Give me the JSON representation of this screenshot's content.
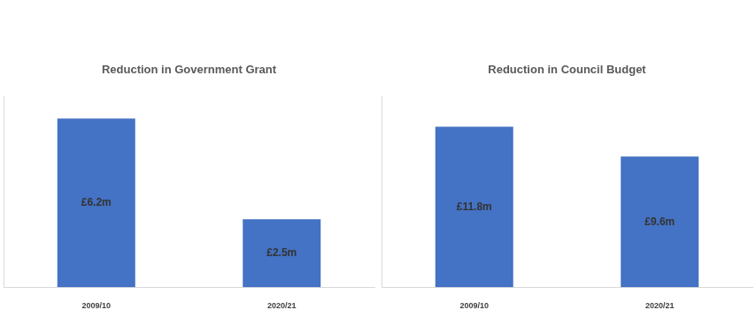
{
  "chart_data": [
    {
      "type": "bar",
      "title": "Reduction in Government Grant",
      "categories": [
        "2009/10",
        "2020/21"
      ],
      "values": [
        6.2,
        2.5
      ],
      "value_labels": [
        "£6.2m",
        "£2.5m"
      ],
      "data_labels": true,
      "color": "#4472c4",
      "ylim": [
        0,
        7
      ],
      "tick_labels": "x",
      "grid": false
    },
    {
      "type": "bar",
      "title": "Reduction in Council Budget",
      "categories": [
        "2009/10",
        "2020/21"
      ],
      "values": [
        11.8,
        9.6
      ],
      "value_labels": [
        "£11.8m",
        "£9.6m"
      ],
      "data_labels": true,
      "color": "#4472c4",
      "ylim": [
        0,
        14
      ],
      "tick_labels": "x",
      "grid": false
    }
  ]
}
